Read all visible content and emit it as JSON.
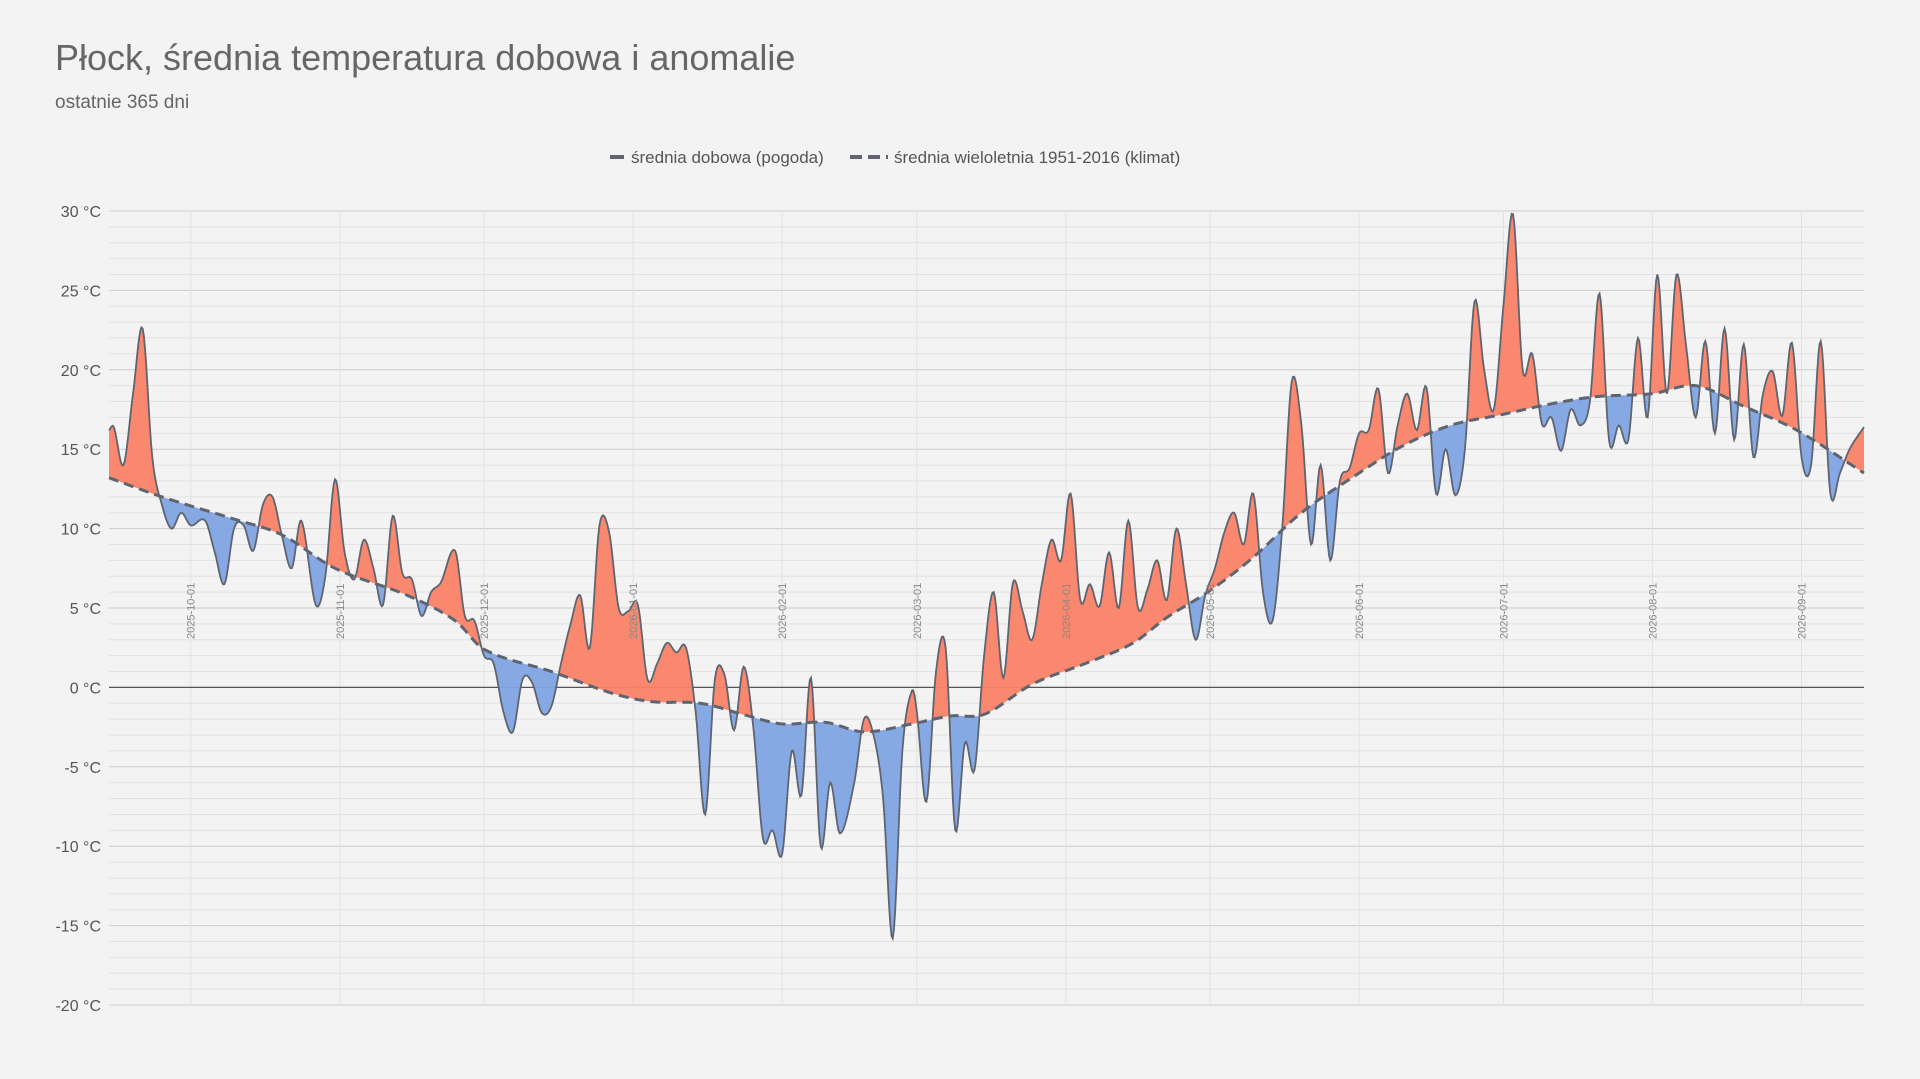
{
  "colors": {
    "background": "#f3f3f3",
    "warm_fill": "#fa8266",
    "cold_fill": "#7fa4e3",
    "line": "#5e6470",
    "grid_major": "#cccccc",
    "grid_minor": "#e2e2e2",
    "zero_line": "#555555"
  },
  "chart_data": {
    "type": "area",
    "title": "Płock, średnia temperatura dobowa i anomalie",
    "subtitle": "ostatnie 365 dni",
    "legend": {
      "placement": "top-center",
      "items": [
        {
          "label": "średnia dobowa (pogoda)",
          "style": "solid"
        },
        {
          "label": "średnia wieloletnia 1951-2016 (klimat)",
          "style": "dashed"
        }
      ]
    },
    "x_start": "2025-09-14",
    "x_end": "2026-09-14",
    "ylim": [
      -20,
      30
    ],
    "y_ticks": [
      30,
      25,
      20,
      15,
      10,
      5,
      0,
      -5,
      -10,
      -15,
      -20
    ],
    "y_tick_labels": [
      "30 °C",
      "25 °C",
      "20 °C",
      "15 °C",
      "10 °C",
      "5 °C",
      "0 °C",
      "-5 °C",
      "-10 °C",
      "-15 °C",
      "-20 °C"
    ],
    "x_tick_labels": [
      "2025-10-01",
      "2025-11-01",
      "2025-12-01",
      "2026-01-01",
      "2026-02-01",
      "2026-03-01",
      "2026-04-01",
      "2026-05-01",
      "2026-06-01",
      "2026-07-01",
      "2026-08-01",
      "2026-09-01"
    ],
    "grid": true,
    "series": [
      {
        "name": "średnia dobowa (pogoda)",
        "points": [
          [
            "2025-09-14",
            16.2
          ],
          [
            "2025-09-15",
            16.4
          ],
          [
            "2025-09-17",
            14.0
          ],
          [
            "2025-09-19",
            18.5
          ],
          [
            "2025-09-21",
            22.6
          ],
          [
            "2025-09-23",
            14.5
          ],
          [
            "2025-09-25",
            11.5
          ],
          [
            "2025-09-27",
            10.0
          ],
          [
            "2025-09-29",
            11.0
          ],
          [
            "2025-10-01",
            10.2
          ],
          [
            "2025-10-04",
            10.5
          ],
          [
            "2025-10-06",
            8.5
          ],
          [
            "2025-10-08",
            6.5
          ],
          [
            "2025-10-10",
            10.0
          ],
          [
            "2025-10-12",
            10.2
          ],
          [
            "2025-10-14",
            8.6
          ],
          [
            "2025-10-16",
            11.5
          ],
          [
            "2025-10-18",
            12.0
          ],
          [
            "2025-10-20",
            9.5
          ],
          [
            "2025-10-22",
            7.5
          ],
          [
            "2025-10-24",
            10.5
          ],
          [
            "2025-10-27",
            5.2
          ],
          [
            "2025-10-29",
            7.0
          ],
          [
            "2025-10-31",
            13.1
          ],
          [
            "2025-11-02",
            8.5
          ],
          [
            "2025-11-04",
            6.8
          ],
          [
            "2025-11-06",
            9.3
          ],
          [
            "2025-11-08",
            7.5
          ],
          [
            "2025-11-10",
            5.2
          ],
          [
            "2025-11-12",
            10.8
          ],
          [
            "2025-11-14",
            7.2
          ],
          [
            "2025-11-16",
            6.8
          ],
          [
            "2025-11-18",
            4.5
          ],
          [
            "2025-11-20",
            6.0
          ],
          [
            "2025-11-22",
            6.6
          ],
          [
            "2025-11-25",
            8.6
          ],
          [
            "2025-11-27",
            4.5
          ],
          [
            "2025-11-29",
            4.2
          ],
          [
            "2025-12-01",
            2.0
          ],
          [
            "2025-12-03",
            1.5
          ],
          [
            "2025-12-05",
            -1.5
          ],
          [
            "2025-12-07",
            -2.8
          ],
          [
            "2025-12-09",
            0.5
          ],
          [
            "2025-12-11",
            0.3
          ],
          [
            "2025-12-13",
            -1.6
          ],
          [
            "2025-12-15",
            -1.2
          ],
          [
            "2025-12-17",
            1.5
          ],
          [
            "2025-12-19",
            4.0
          ],
          [
            "2025-12-21",
            5.8
          ],
          [
            "2025-12-23",
            2.5
          ],
          [
            "2025-12-25",
            10.2
          ],
          [
            "2025-12-27",
            9.8
          ],
          [
            "2025-12-29",
            5.0
          ],
          [
            "2025-12-31",
            4.8
          ],
          [
            "2026-01-02",
            5.2
          ],
          [
            "2026-01-04",
            0.5
          ],
          [
            "2026-01-06",
            1.5
          ],
          [
            "2026-01-08",
            2.8
          ],
          [
            "2026-01-10",
            2.2
          ],
          [
            "2026-01-12",
            2.5
          ],
          [
            "2026-01-14",
            -1.5
          ],
          [
            "2026-01-16",
            -8.0
          ],
          [
            "2026-01-18",
            0.5
          ],
          [
            "2026-01-20",
            0.8
          ],
          [
            "2026-01-22",
            -2.7
          ],
          [
            "2026-01-24",
            1.3
          ],
          [
            "2026-01-26",
            -2.5
          ],
          [
            "2026-01-28",
            -9.5
          ],
          [
            "2026-01-30",
            -9.0
          ],
          [
            "2026-02-01",
            -10.5
          ],
          [
            "2026-02-03",
            -4.0
          ],
          [
            "2026-02-05",
            -6.8
          ],
          [
            "2026-02-07",
            0.6
          ],
          [
            "2026-02-09",
            -10.0
          ],
          [
            "2026-02-11",
            -6.0
          ],
          [
            "2026-02-13",
            -9.2
          ],
          [
            "2026-02-16",
            -6.0
          ],
          [
            "2026-02-18",
            -2.0
          ],
          [
            "2026-02-20",
            -3.0
          ],
          [
            "2026-02-22",
            -7.0
          ],
          [
            "2026-02-24",
            -15.8
          ],
          [
            "2026-02-26",
            -4.0
          ],
          [
            "2026-02-28",
            -0.2
          ],
          [
            "2026-03-01",
            -1.5
          ],
          [
            "2026-03-03",
            -7.2
          ],
          [
            "2026-03-05",
            1.0
          ],
          [
            "2026-03-07",
            2.5
          ],
          [
            "2026-03-09",
            -9.0
          ],
          [
            "2026-03-11",
            -3.5
          ],
          [
            "2026-03-13",
            -5.2
          ],
          [
            "2026-03-15",
            2.0
          ],
          [
            "2026-03-17",
            6.0
          ],
          [
            "2026-03-19",
            0.6
          ],
          [
            "2026-03-21",
            6.6
          ],
          [
            "2026-03-23",
            4.8
          ],
          [
            "2026-03-25",
            3.0
          ],
          [
            "2026-03-27",
            6.5
          ],
          [
            "2026-03-29",
            9.3
          ],
          [
            "2026-03-31",
            8.0
          ],
          [
            "2026-04-02",
            12.2
          ],
          [
            "2026-04-04",
            5.5
          ],
          [
            "2026-04-06",
            6.5
          ],
          [
            "2026-04-08",
            5.1
          ],
          [
            "2026-04-10",
            8.5
          ],
          [
            "2026-04-12",
            5.0
          ],
          [
            "2026-04-14",
            10.5
          ],
          [
            "2026-04-16",
            5.0
          ],
          [
            "2026-04-18",
            6.2
          ],
          [
            "2026-04-20",
            8.0
          ],
          [
            "2026-04-22",
            5.5
          ],
          [
            "2026-04-24",
            10.0
          ],
          [
            "2026-04-26",
            6.5
          ],
          [
            "2026-04-28",
            3.0
          ],
          [
            "2026-04-30",
            5.8
          ],
          [
            "2026-05-02",
            7.5
          ],
          [
            "2026-05-04",
            9.8
          ],
          [
            "2026-05-06",
            11.0
          ],
          [
            "2026-05-08",
            9.0
          ],
          [
            "2026-05-10",
            12.2
          ],
          [
            "2026-05-12",
            6.0
          ],
          [
            "2026-05-14",
            4.2
          ],
          [
            "2026-05-16",
            10.0
          ],
          [
            "2026-05-18",
            19.3
          ],
          [
            "2026-05-20",
            16.5
          ],
          [
            "2026-05-22",
            9.0
          ],
          [
            "2026-05-24",
            14.0
          ],
          [
            "2026-05-26",
            8.0
          ],
          [
            "2026-05-28",
            13.0
          ],
          [
            "2026-05-30",
            13.8
          ],
          [
            "2026-06-01",
            16.0
          ],
          [
            "2026-06-03",
            16.2
          ],
          [
            "2026-06-05",
            18.8
          ],
          [
            "2026-06-07",
            13.5
          ],
          [
            "2026-06-09",
            16.5
          ],
          [
            "2026-06-11",
            18.5
          ],
          [
            "2026-06-13",
            16.2
          ],
          [
            "2026-06-15",
            18.9
          ],
          [
            "2026-06-17",
            12.2
          ],
          [
            "2026-06-19",
            15.0
          ],
          [
            "2026-06-21",
            12.1
          ],
          [
            "2026-06-23",
            15.0
          ],
          [
            "2026-06-25",
            24.3
          ],
          [
            "2026-06-27",
            20.0
          ],
          [
            "2026-06-29",
            17.5
          ],
          [
            "2026-07-01",
            24.0
          ],
          [
            "2026-07-03",
            29.8
          ],
          [
            "2026-07-05",
            20.0
          ],
          [
            "2026-07-07",
            21.0
          ],
          [
            "2026-07-09",
            16.6
          ],
          [
            "2026-07-11",
            17.0
          ],
          [
            "2026-07-13",
            14.9
          ],
          [
            "2026-07-15",
            17.5
          ],
          [
            "2026-07-17",
            16.5
          ],
          [
            "2026-07-19",
            18.0
          ],
          [
            "2026-07-21",
            24.8
          ],
          [
            "2026-07-23",
            15.5
          ],
          [
            "2026-07-25",
            16.5
          ],
          [
            "2026-07-27",
            15.6
          ],
          [
            "2026-07-29",
            22.0
          ],
          [
            "2026-07-31",
            17.0
          ],
          [
            "2026-08-02",
            26.0
          ],
          [
            "2026-08-04",
            18.5
          ],
          [
            "2026-08-06",
            26.0
          ],
          [
            "2026-08-08",
            21.5
          ],
          [
            "2026-08-10",
            17.0
          ],
          [
            "2026-08-12",
            21.8
          ],
          [
            "2026-08-14",
            16.0
          ],
          [
            "2026-08-16",
            22.6
          ],
          [
            "2026-08-18",
            15.6
          ],
          [
            "2026-08-20",
            21.6
          ],
          [
            "2026-08-22",
            14.5
          ],
          [
            "2026-08-24",
            18.5
          ],
          [
            "2026-08-26",
            19.9
          ],
          [
            "2026-08-28",
            17.1
          ],
          [
            "2026-08-30",
            21.7
          ],
          [
            "2026-09-01",
            14.5
          ],
          [
            "2026-09-03",
            14.0
          ],
          [
            "2026-09-05",
            21.8
          ],
          [
            "2026-09-07",
            12.2
          ],
          [
            "2026-09-09",
            13.5
          ],
          [
            "2026-09-11",
            15.0
          ],
          [
            "2026-09-14",
            16.4
          ]
        ]
      },
      {
        "name": "średnia wieloletnia 1951-2016 (klimat)",
        "points": [
          [
            "2025-09-14",
            13.2
          ],
          [
            "2025-09-25",
            12.0
          ],
          [
            "2025-10-10",
            10.6
          ],
          [
            "2025-10-20",
            9.6
          ],
          [
            "2025-10-31",
            7.5
          ],
          [
            "2025-11-15",
            5.8
          ],
          [
            "2025-11-25",
            4.2
          ],
          [
            "2025-12-01",
            2.4
          ],
          [
            "2025-12-15",
            1.0
          ],
          [
            "2025-12-28",
            -0.4
          ],
          [
            "2026-01-05",
            -0.9
          ],
          [
            "2026-01-15",
            -1.0
          ],
          [
            "2026-01-25",
            -1.8
          ],
          [
            "2026-02-01",
            -2.3
          ],
          [
            "2026-02-10",
            -2.2
          ],
          [
            "2026-02-18",
            -2.8
          ],
          [
            "2026-02-28",
            -2.3
          ],
          [
            "2026-03-08",
            -1.8
          ],
          [
            "2026-03-15",
            -1.7
          ],
          [
            "2026-03-25",
            0.2
          ],
          [
            "2026-04-05",
            1.5
          ],
          [
            "2026-04-15",
            2.8
          ],
          [
            "2026-04-22",
            4.4
          ],
          [
            "2026-05-01",
            6.1
          ],
          [
            "2026-05-10",
            8.2
          ],
          [
            "2026-05-20",
            11.0
          ],
          [
            "2026-06-01",
            13.5
          ],
          [
            "2026-06-10",
            15.2
          ],
          [
            "2026-06-20",
            16.5
          ],
          [
            "2026-07-01",
            17.2
          ],
          [
            "2026-07-10",
            17.8
          ],
          [
            "2026-07-20",
            18.3
          ],
          [
            "2026-08-01",
            18.5
          ],
          [
            "2026-08-10",
            19.0
          ],
          [
            "2026-08-20",
            17.7
          ],
          [
            "2026-08-31",
            16.2
          ],
          [
            "2026-09-14",
            13.5
          ]
        ]
      }
    ]
  }
}
